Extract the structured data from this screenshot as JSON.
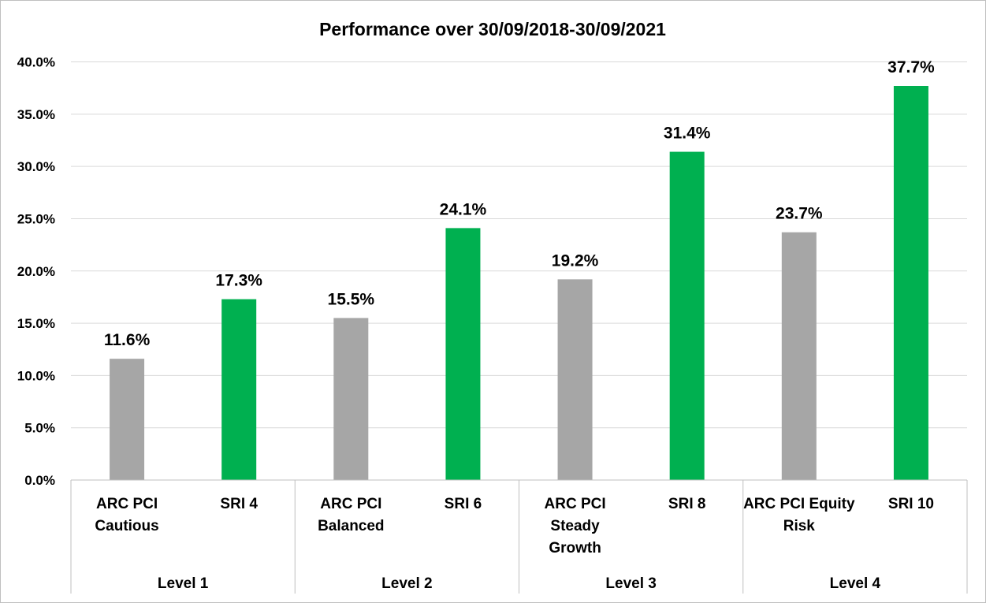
{
  "chart_data": {
    "type": "bar",
    "title": "Performance over 30/09/2018-30/09/2021",
    "xlabel": "",
    "ylabel": "",
    "ylim": [
      0,
      40
    ],
    "y_ticks": [
      "0.0%",
      "5.0%",
      "10.0%",
      "15.0%",
      "20.0%",
      "25.0%",
      "30.0%",
      "35.0%",
      "40.0%"
    ],
    "y_tick_values": [
      0,
      5,
      10,
      15,
      20,
      25,
      30,
      35,
      40
    ],
    "grid": true,
    "legend": "none",
    "groups": [
      "Level 1",
      "Level 2",
      "Level 3",
      "Level 4"
    ],
    "categories": [
      [
        "ARC PCI",
        "Cautious"
      ],
      [
        "SRI 4"
      ],
      [
        "ARC PCI",
        "Balanced"
      ],
      [
        "SRI 6"
      ],
      [
        "ARC PCI",
        "Steady",
        "Growth"
      ],
      [
        "SRI 8"
      ],
      [
        "ARC PCI Equity",
        "Risk"
      ],
      [
        "SRI 10"
      ]
    ],
    "values": [
      11.6,
      17.3,
      15.5,
      24.1,
      19.2,
      31.4,
      23.7,
      37.7
    ],
    "data_labels": [
      "11.6%",
      "17.3%",
      "15.5%",
      "24.1%",
      "19.2%",
      "31.4%",
      "23.7%",
      "37.7%"
    ],
    "bar_colors": [
      "#a6a6a6",
      "#00b050",
      "#a6a6a6",
      "#00b050",
      "#a6a6a6",
      "#00b050",
      "#a6a6a6",
      "#00b050"
    ],
    "gridline_color": "#d9d9d9",
    "border_color": "#bfbfbf"
  }
}
